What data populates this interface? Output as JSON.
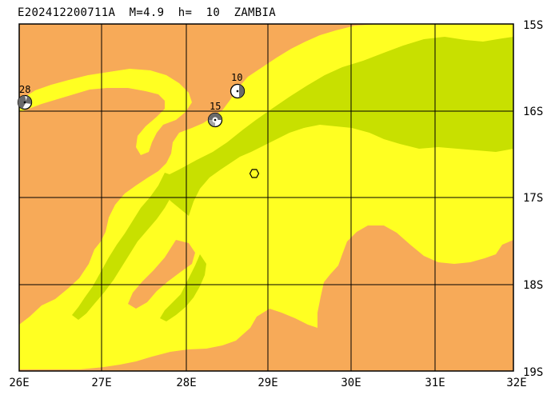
{
  "map": {
    "title": "E202412200711A  M=4.9  h=  10  ZAMBIA",
    "colors": {
      "low": "#f7aa58",
      "mid": "#ffff22",
      "high": "#c8e000",
      "grid": "#000000",
      "border": "#000000"
    },
    "lon_labels": [
      "26E",
      "27E",
      "28E",
      "29E",
      "30E",
      "31E",
      "32E"
    ],
    "lat_labels": [
      "15S",
      "16S",
      "17S",
      "18S",
      "19S"
    ],
    "stations": [
      {
        "label": "28",
        "icon": "focal-mechanism-icon"
      },
      {
        "label": "10",
        "icon": "focal-mechanism-icon"
      },
      {
        "label": "15",
        "icon": "focal-mechanism-icon"
      }
    ],
    "epicenter": {
      "icon": "hexagon-epicenter-icon"
    }
  }
}
